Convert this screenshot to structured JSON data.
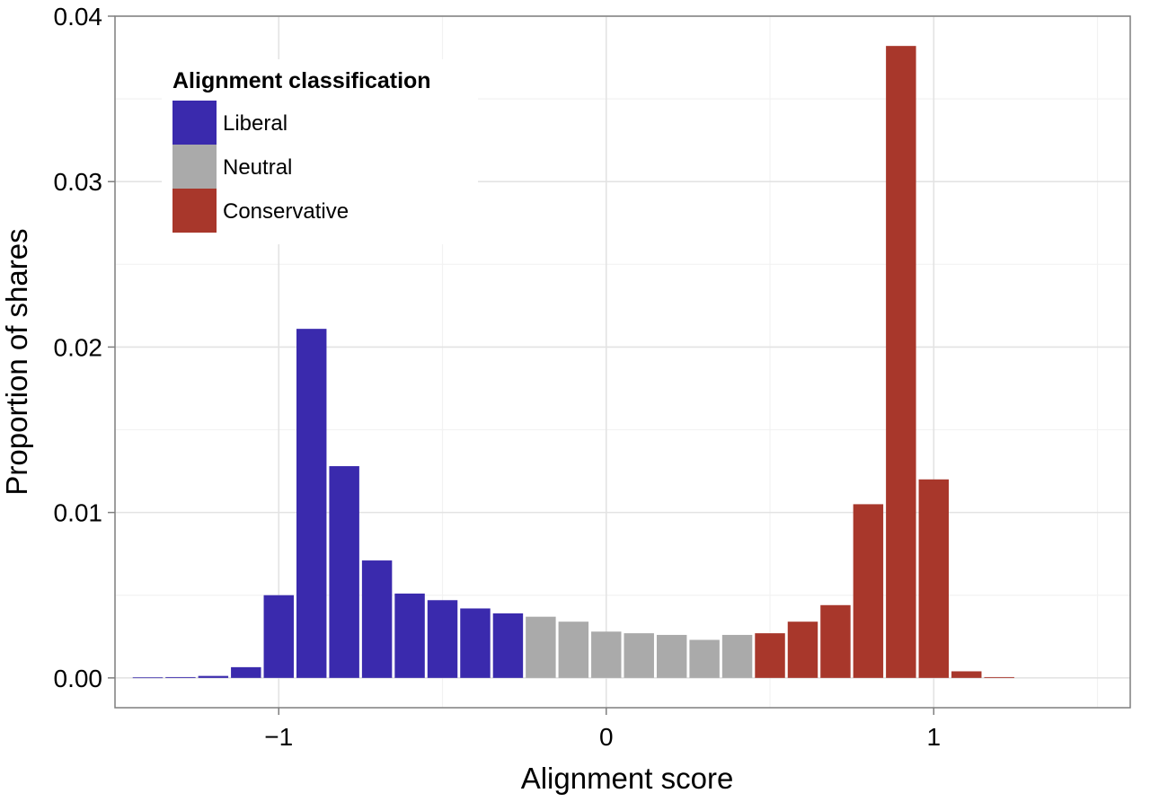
{
  "chart_data": {
    "type": "bar",
    "title": "",
    "xlabel": "Alignment score",
    "ylabel": "Proportion of shares",
    "xlim": [
      -1.5,
      1.6
    ],
    "ylim": [
      -0.0018,
      0.04
    ],
    "x_ticks": [
      {
        "value": -1,
        "label": "−1"
      },
      {
        "value": 0,
        "label": "0"
      },
      {
        "value": 1,
        "label": "1"
      }
    ],
    "y_ticks": [
      {
        "value": 0,
        "label": "0.00"
      },
      {
        "value": 0.01,
        "label": "0.01"
      },
      {
        "value": 0.02,
        "label": "0.02"
      },
      {
        "value": 0.03,
        "label": "0.03"
      },
      {
        "value": 0.04,
        "label": "0.04"
      }
    ],
    "grid": true,
    "bin_width": 0.1,
    "legend": {
      "title": "Alignment classification",
      "placement": "top-left",
      "entries": [
        {
          "name": "Liberal",
          "color": "#3a2aad"
        },
        {
          "name": "Neutral",
          "color": "#aaaaaa"
        },
        {
          "name": "Conservative",
          "color": "#a8372b"
        }
      ]
    },
    "bars": [
      {
        "x": -1.4,
        "value": 3e-05,
        "class": "Liberal"
      },
      {
        "x": -1.3,
        "value": 5e-05,
        "class": "Liberal"
      },
      {
        "x": -1.2,
        "value": 0.00012,
        "class": "Liberal"
      },
      {
        "x": -1.1,
        "value": 0.00065,
        "class": "Liberal"
      },
      {
        "x": -1.0,
        "value": 0.005,
        "class": "Liberal"
      },
      {
        "x": -0.9,
        "value": 0.0211,
        "class": "Liberal"
      },
      {
        "x": -0.8,
        "value": 0.0128,
        "class": "Liberal"
      },
      {
        "x": -0.7,
        "value": 0.0071,
        "class": "Liberal"
      },
      {
        "x": -0.6,
        "value": 0.0051,
        "class": "Liberal"
      },
      {
        "x": -0.5,
        "value": 0.0047,
        "class": "Liberal"
      },
      {
        "x": -0.4,
        "value": 0.0042,
        "class": "Liberal"
      },
      {
        "x": -0.3,
        "value": 0.0039,
        "class": "Liberal"
      },
      {
        "x": -0.2,
        "value": 0.0037,
        "class": "Neutral"
      },
      {
        "x": -0.1,
        "value": 0.0034,
        "class": "Neutral"
      },
      {
        "x": 0.0,
        "value": 0.0028,
        "class": "Neutral"
      },
      {
        "x": 0.1,
        "value": 0.0027,
        "class": "Neutral"
      },
      {
        "x": 0.2,
        "value": 0.0026,
        "class": "Neutral"
      },
      {
        "x": 0.3,
        "value": 0.0023,
        "class": "Neutral"
      },
      {
        "x": 0.4,
        "value": 0.0026,
        "class": "Neutral"
      },
      {
        "x": 0.5,
        "value": 0.0027,
        "class": "Conservative"
      },
      {
        "x": 0.6,
        "value": 0.0034,
        "class": "Conservative"
      },
      {
        "x": 0.7,
        "value": 0.0044,
        "class": "Conservative"
      },
      {
        "x": 0.8,
        "value": 0.0105,
        "class": "Conservative"
      },
      {
        "x": 0.9,
        "value": 0.0382,
        "class": "Conservative"
      },
      {
        "x": 1.0,
        "value": 0.012,
        "class": "Conservative"
      },
      {
        "x": 1.1,
        "value": 0.0004,
        "class": "Conservative"
      },
      {
        "x": 1.2,
        "value": 5e-05,
        "class": "Conservative"
      }
    ]
  }
}
